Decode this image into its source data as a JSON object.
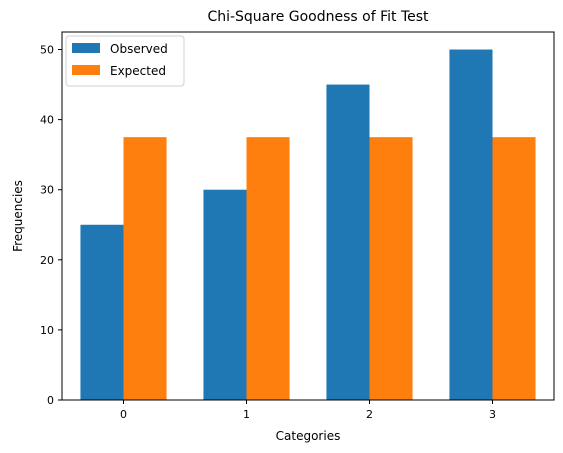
{
  "chart_data": {
    "type": "bar",
    "title": "Chi-Square Goodness of Fit Test",
    "xlabel": "Categories",
    "ylabel": "Frequencies",
    "categories": [
      "0",
      "1",
      "2",
      "3"
    ],
    "series": [
      {
        "name": "Observed",
        "color": "#1f77b4",
        "values": [
          25,
          30,
          45,
          50
        ]
      },
      {
        "name": "Expected",
        "color": "#ff7f0e",
        "values": [
          37.5,
          37.5,
          37.5,
          37.5
        ]
      }
    ],
    "ylim": [
      0,
      52.5
    ],
    "yticks": [
      0,
      10,
      20,
      30,
      40,
      50
    ],
    "grid": false,
    "legend_position": "upper-left"
  }
}
